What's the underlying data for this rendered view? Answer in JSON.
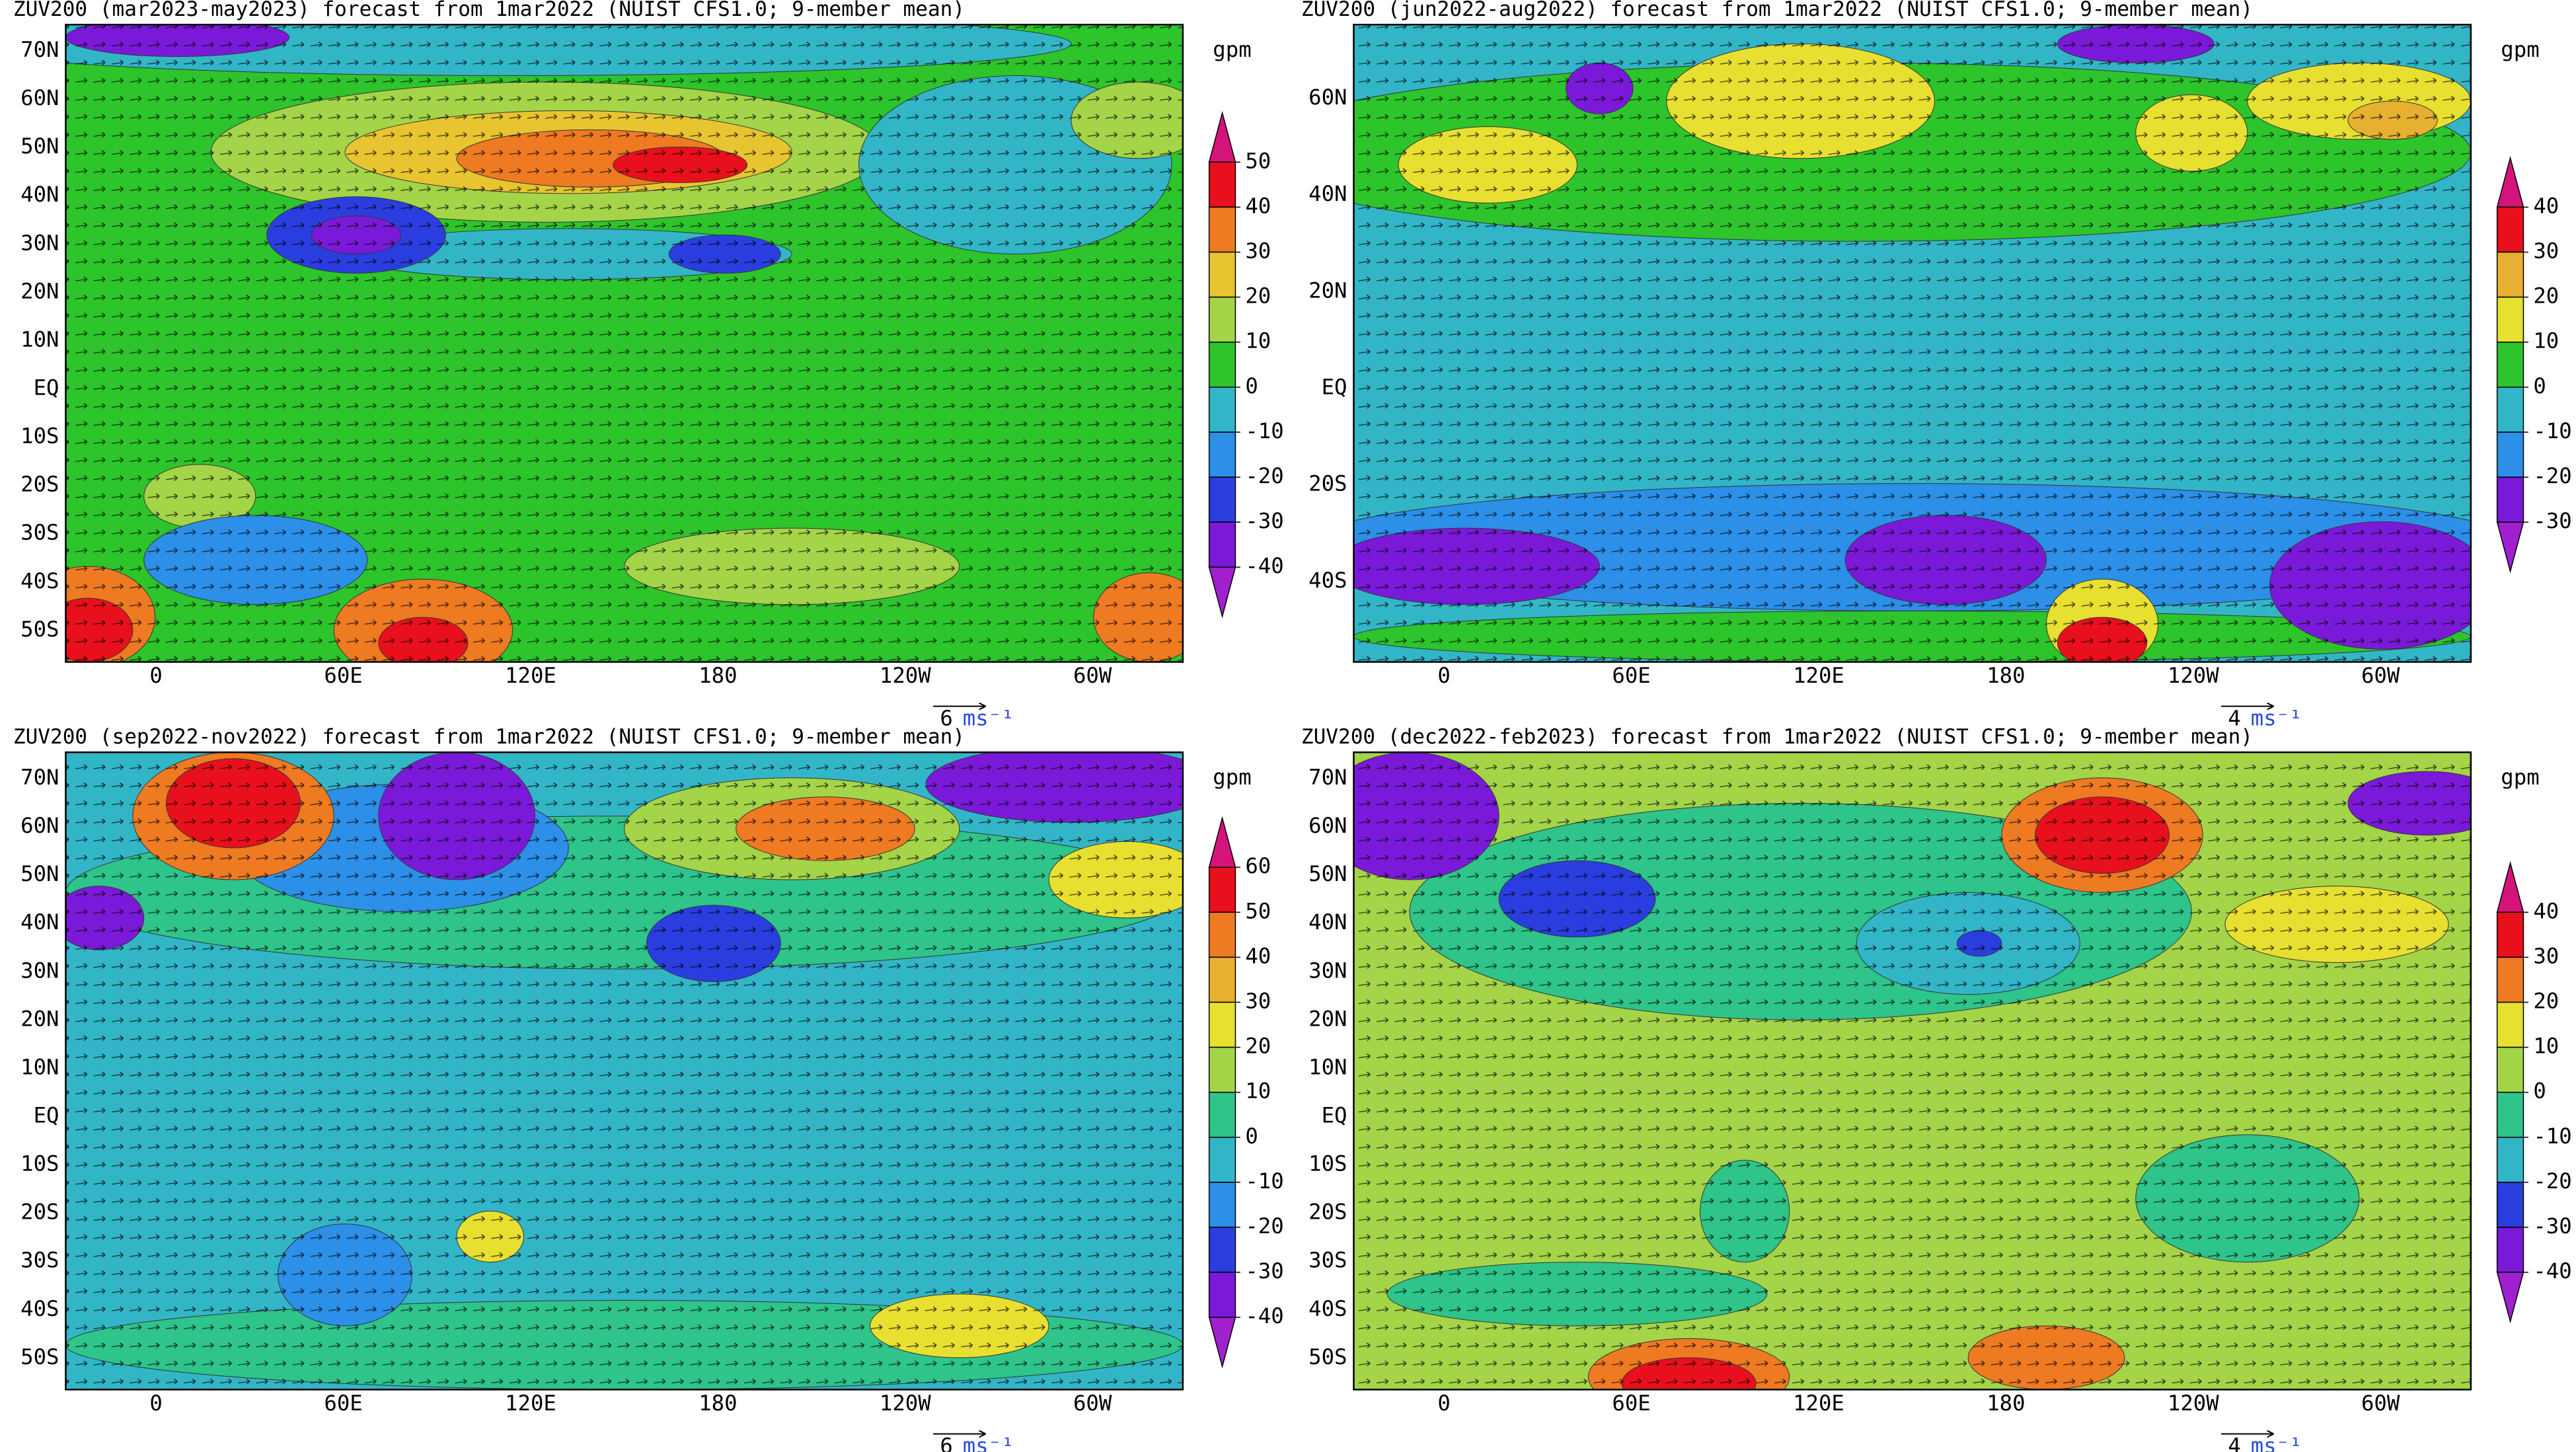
{
  "panels": [
    {
      "title": "ZUV200 (mar2023-may2023) forecast from 1mar2022 (NUIST CFS1.0; 9-member mean)",
      "unit": "gpm",
      "lat_labels": [
        "70N",
        "60N",
        "50N",
        "40N",
        "30N",
        "20N",
        "10N",
        "EQ",
        "10S",
        "20S",
        "30S",
        "40S",
        "50S"
      ],
      "lon_labels": [
        "0",
        "60E",
        "120E",
        "180",
        "120W",
        "60W"
      ],
      "colorbar": {
        "levels": [
          50,
          40,
          30,
          20,
          10,
          0,
          -10,
          -20,
          -30,
          -40
        ],
        "colors": [
          "#d4147a",
          "#e8101c",
          "#ee7a22",
          "#e8c530",
          "#a4d448",
          "#2ec42c",
          "#33b5c8",
          "#2c8fe8",
          "#2a3ee0",
          "#7a1ad8",
          "#a020d0"
        ]
      },
      "ref_vector": {
        "value_label": "6",
        "unit": "ms⁻¹"
      }
    },
    {
      "title": "ZUV200 (jun2022-aug2022) forecast from 1mar2022 (NUIST CFS1.0; 9-member mean)",
      "unit": "gpm",
      "lat_labels": [
        "60N",
        "40N",
        "20N",
        "EQ",
        "20S",
        "40S"
      ],
      "lon_labels": [
        "0",
        "60E",
        "120E",
        "180",
        "120W",
        "60W"
      ],
      "colorbar": {
        "levels": [
          40,
          30,
          20,
          10,
          0,
          -10,
          -20,
          -30
        ],
        "colors": [
          "#d4147a",
          "#e8101c",
          "#e8b030",
          "#e8e030",
          "#2ec42c",
          "#33b5c8",
          "#2c8fe8",
          "#7a1ad8",
          "#a020d0"
        ]
      },
      "ref_vector": {
        "value_label": "4",
        "unit": "ms⁻¹"
      }
    },
    {
      "title": "ZUV200 (sep2022-nov2022) forecast from 1mar2022 (NUIST CFS1.0; 9-member mean)",
      "unit": "gpm",
      "lat_labels": [
        "70N",
        "60N",
        "50N",
        "40N",
        "30N",
        "20N",
        "10N",
        "EQ",
        "10S",
        "20S",
        "30S",
        "40S",
        "50S"
      ],
      "lon_labels": [
        "0",
        "60E",
        "120E",
        "180",
        "120W",
        "60W"
      ],
      "colorbar": {
        "levels": [
          60,
          50,
          40,
          30,
          20,
          10,
          0,
          -10,
          -20,
          -30,
          -40
        ],
        "colors": [
          "#d4147a",
          "#e8101c",
          "#ee7a22",
          "#e8b030",
          "#e8e030",
          "#a4d448",
          "#2ec48a",
          "#33b5c8",
          "#2c8fe8",
          "#2a3ee0",
          "#7a1ad8",
          "#a020d0"
        ]
      },
      "ref_vector": {
        "value_label": "6",
        "unit": "ms⁻¹"
      }
    },
    {
      "title": "ZUV200 (dec2022-feb2023) forecast from 1mar2022 (NUIST CFS1.0; 9-member mean)",
      "unit": "gpm",
      "lat_labels": [
        "70N",
        "60N",
        "50N",
        "40N",
        "30N",
        "20N",
        "10N",
        "EQ",
        "10S",
        "20S",
        "30S",
        "40S",
        "50S"
      ],
      "lon_labels": [
        "0",
        "60E",
        "120E",
        "180",
        "120W",
        "60W"
      ],
      "colorbar": {
        "levels": [
          40,
          30,
          20,
          10,
          0,
          -10,
          -20,
          -30,
          -40
        ],
        "colors": [
          "#d4147a",
          "#e8101c",
          "#ee7a22",
          "#e8e030",
          "#a4d448",
          "#2ec48a",
          "#33b5c8",
          "#2a3ee0",
          "#7a1ad8",
          "#a020d0"
        ]
      },
      "ref_vector": {
        "value_label": "4",
        "unit": "ms⁻¹"
      }
    }
  ]
}
